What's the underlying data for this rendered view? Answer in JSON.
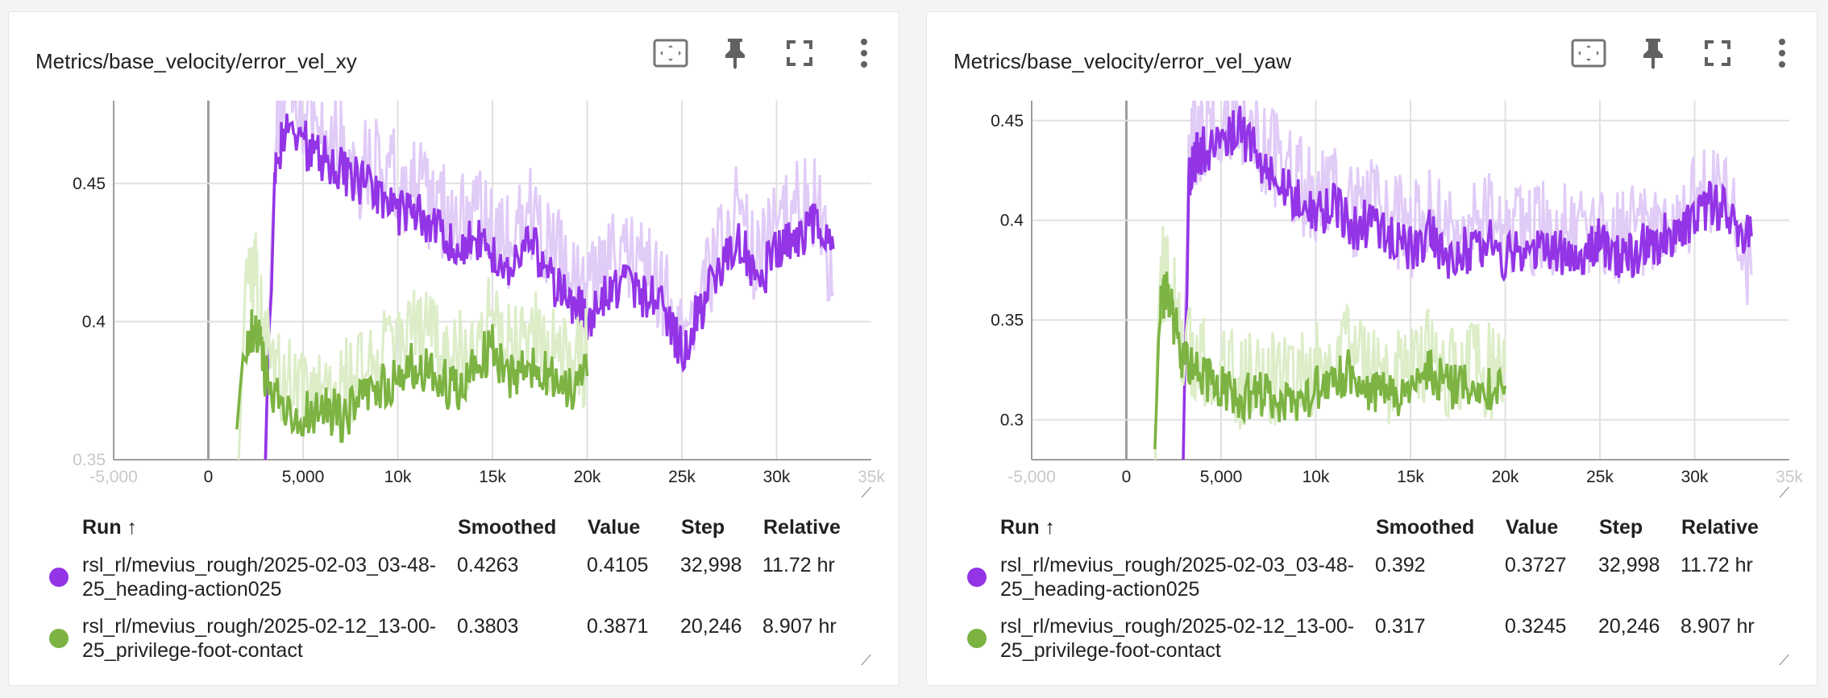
{
  "cards": [
    {
      "title": "Metrics/base_velocity/error_vel_xy",
      "table": {
        "headers": {
          "run": "Run ↑",
          "smoothed": "Smoothed",
          "value": "Value",
          "step": "Step",
          "relative": "Relative"
        },
        "rows": [
          {
            "run": "rsl_rl/mevius_rough/2025-02-03_03-48-25_heading-action025",
            "smoothed": "0.4263",
            "value": "0.4105",
            "step": "32,998",
            "relative": "11.72 hr",
            "color": "#9334e6"
          },
          {
            "run": "rsl_rl/mevius_rough/2025-02-12_13-00-25_privilege-foot-contact",
            "smoothed": "0.3803",
            "value": "0.3871",
            "step": "20,246",
            "relative": "8.907 hr",
            "color": "#7cb342"
          }
        ]
      }
    },
    {
      "title": "Metrics/base_velocity/error_vel_yaw",
      "table": {
        "headers": {
          "run": "Run ↑",
          "smoothed": "Smoothed",
          "value": "Value",
          "step": "Step",
          "relative": "Relative"
        },
        "rows": [
          {
            "run": "rsl_rl/mevius_rough/2025-02-03_03-48-25_heading-action025",
            "smoothed": "0.392",
            "value": "0.3727",
            "step": "32,998",
            "relative": "11.72 hr",
            "color": "#9334e6"
          },
          {
            "run": "rsl_rl/mevius_rough/2025-02-12_13-00-25_privilege-foot-contact",
            "smoothed": "0.317",
            "value": "0.3245",
            "step": "20,246",
            "relative": "8.907 hr",
            "color": "#7cb342"
          }
        ]
      }
    }
  ],
  "chart_data": [
    {
      "type": "line",
      "title": "Metrics/base_velocity/error_vel_xy",
      "xlim": [
        -5000,
        35000
      ],
      "ylim": [
        0.35,
        0.48
      ],
      "x_ticks": [
        {
          "value": -5000,
          "label": "-5,000",
          "faded": true
        },
        {
          "value": 0,
          "label": "0"
        },
        {
          "value": 5000,
          "label": "5,000"
        },
        {
          "value": 10000,
          "label": "10k"
        },
        {
          "value": 15000,
          "label": "15k"
        },
        {
          "value": 20000,
          "label": "20k"
        },
        {
          "value": 25000,
          "label": "25k"
        },
        {
          "value": 30000,
          "label": "30k"
        },
        {
          "value": 35000,
          "label": "35k",
          "faded": true
        }
      ],
      "y_ticks": [
        {
          "value": 0.35,
          "label": "0.35",
          "faded": true
        },
        {
          "value": 0.4,
          "label": "0.4"
        },
        {
          "value": 0.45,
          "label": "0.45"
        }
      ],
      "grid": true,
      "series": [
        {
          "color": "#9334e6",
          "raw_color": "#e1cbf7",
          "x": [
            3000,
            3500,
            4000,
            5000,
            6000,
            7000,
            8000,
            9000,
            10000,
            11000,
            12000,
            13000,
            14000,
            15000,
            16000,
            17000,
            18000,
            19000,
            20000,
            21000,
            22000,
            23000,
            24000,
            25000,
            26000,
            27000,
            28000,
            29000,
            30000,
            31000,
            32000,
            33000
          ],
          "smoothed": [
            0.35,
            0.45,
            0.47,
            0.465,
            0.46,
            0.455,
            0.45,
            0.445,
            0.44,
            0.44,
            0.435,
            0.425,
            0.43,
            0.425,
            0.42,
            0.43,
            0.415,
            0.41,
            0.4,
            0.41,
            0.415,
            0.41,
            0.405,
            0.39,
            0.405,
            0.42,
            0.43,
            0.415,
            0.425,
            0.43,
            0.435,
            0.4263
          ],
          "raw": [
            0.35,
            0.47,
            0.48,
            0.475,
            0.47,
            0.465,
            0.455,
            0.46,
            0.45,
            0.45,
            0.44,
            0.44,
            0.44,
            0.43,
            0.43,
            0.44,
            0.425,
            0.42,
            0.41,
            0.42,
            0.425,
            0.42,
            0.41,
            0.4,
            0.41,
            0.43,
            0.44,
            0.42,
            0.435,
            0.44,
            0.445,
            0.4105
          ]
        },
        {
          "color": "#7cb342",
          "raw_color": "#dcedc8",
          "x": [
            1500,
            2000,
            2500,
            3000,
            4000,
            5000,
            6000,
            7000,
            8000,
            9000,
            10000,
            11000,
            12000,
            13000,
            14000,
            15000,
            16000,
            17000,
            18000,
            19000,
            20000
          ],
          "smoothed": [
            0.36,
            0.39,
            0.4,
            0.38,
            0.37,
            0.365,
            0.37,
            0.365,
            0.37,
            0.375,
            0.38,
            0.385,
            0.38,
            0.375,
            0.385,
            0.39,
            0.38,
            0.385,
            0.38,
            0.375,
            0.3803
          ],
          "raw": [
            0.35,
            0.41,
            0.42,
            0.39,
            0.38,
            0.375,
            0.38,
            0.375,
            0.38,
            0.385,
            0.39,
            0.395,
            0.39,
            0.385,
            0.395,
            0.4,
            0.39,
            0.395,
            0.39,
            0.385,
            0.3871
          ]
        }
      ]
    },
    {
      "type": "line",
      "title": "Metrics/base_velocity/error_vel_yaw",
      "xlim": [
        -5000,
        35000
      ],
      "ylim": [
        0.28,
        0.46
      ],
      "x_ticks": [
        {
          "value": -5000,
          "label": "-5,000",
          "faded": true
        },
        {
          "value": 0,
          "label": "0"
        },
        {
          "value": 5000,
          "label": "5,000"
        },
        {
          "value": 10000,
          "label": "10k"
        },
        {
          "value": 15000,
          "label": "15k"
        },
        {
          "value": 20000,
          "label": "20k"
        },
        {
          "value": 25000,
          "label": "25k"
        },
        {
          "value": 30000,
          "label": "30k"
        },
        {
          "value": 35000,
          "label": "35k",
          "faded": true
        }
      ],
      "y_ticks": [
        {
          "value": 0.3,
          "label": "0.3"
        },
        {
          "value": 0.35,
          "label": "0.35"
        },
        {
          "value": 0.4,
          "label": "0.4"
        },
        {
          "value": 0.45,
          "label": "0.45"
        }
      ],
      "grid": true,
      "series": [
        {
          "color": "#9334e6",
          "raw_color": "#e1cbf7",
          "x": [
            3000,
            3300,
            3600,
            4000,
            5000,
            6000,
            7000,
            8000,
            9000,
            10000,
            11000,
            12000,
            13000,
            14000,
            15000,
            16000,
            17000,
            18000,
            19000,
            20000,
            21000,
            22000,
            23000,
            24000,
            25000,
            26000,
            27000,
            28000,
            29000,
            30000,
            31000,
            32000,
            33000
          ],
          "smoothed": [
            0.28,
            0.42,
            0.43,
            0.435,
            0.44,
            0.445,
            0.43,
            0.42,
            0.41,
            0.4,
            0.41,
            0.395,
            0.4,
            0.39,
            0.385,
            0.395,
            0.38,
            0.385,
            0.39,
            0.38,
            0.385,
            0.39,
            0.385,
            0.38,
            0.39,
            0.38,
            0.385,
            0.39,
            0.395,
            0.4,
            0.41,
            0.4,
            0.392
          ],
          "raw": [
            0.28,
            0.43,
            0.44,
            0.445,
            0.45,
            0.455,
            0.44,
            0.43,
            0.42,
            0.41,
            0.42,
            0.405,
            0.41,
            0.4,
            0.395,
            0.405,
            0.39,
            0.395,
            0.4,
            0.39,
            0.395,
            0.4,
            0.395,
            0.39,
            0.4,
            0.39,
            0.395,
            0.4,
            0.405,
            0.41,
            0.42,
            0.41,
            0.3727
          ]
        },
        {
          "color": "#7cb342",
          "raw_color": "#dcedc8",
          "x": [
            1500,
            1800,
            2100,
            2500,
            3000,
            4000,
            5000,
            6000,
            7000,
            8000,
            9000,
            10000,
            11000,
            12000,
            13000,
            14000,
            15000,
            16000,
            17000,
            18000,
            19000,
            20000
          ],
          "smoothed": [
            0.28,
            0.36,
            0.365,
            0.35,
            0.33,
            0.32,
            0.315,
            0.31,
            0.315,
            0.31,
            0.312,
            0.315,
            0.32,
            0.325,
            0.315,
            0.31,
            0.32,
            0.325,
            0.315,
            0.32,
            0.315,
            0.317
          ],
          "raw": [
            0.28,
            0.37,
            0.375,
            0.36,
            0.34,
            0.33,
            0.325,
            0.32,
            0.325,
            0.32,
            0.322,
            0.325,
            0.33,
            0.335,
            0.325,
            0.32,
            0.33,
            0.335,
            0.325,
            0.33,
            0.325,
            0.3245
          ]
        }
      ]
    }
  ]
}
